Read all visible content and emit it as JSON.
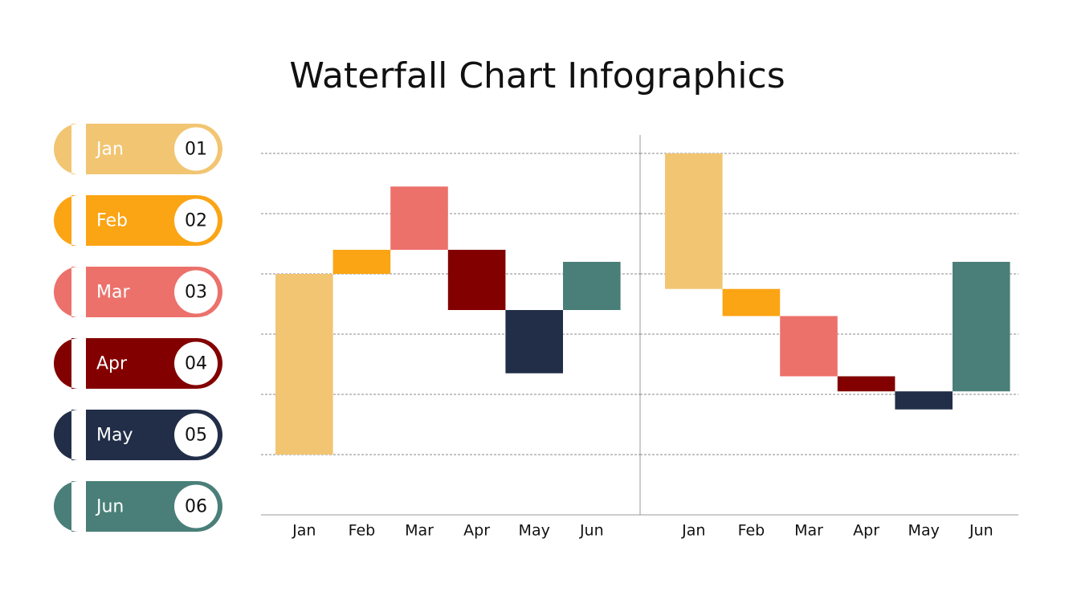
{
  "title": "Waterfall Chart Infographics",
  "legend": {
    "items": [
      {
        "label": "Jan",
        "number": "01"
      },
      {
        "label": "Feb",
        "number": "02"
      },
      {
        "label": "Mar",
        "number": "03"
      },
      {
        "label": "Apr",
        "number": "04"
      },
      {
        "label": "May",
        "number": "05"
      },
      {
        "label": "Jun",
        "number": "06"
      }
    ]
  },
  "chart_data": [
    {
      "type": "waterfall",
      "categories": [
        "Jan",
        "Feb",
        "Mar",
        "Apr",
        "May",
        "Jun"
      ],
      "low": [
        1,
        4,
        4.4,
        3.4,
        2.35,
        3.4
      ],
      "high": [
        4,
        4.4,
        5.45,
        4.4,
        3.4,
        4.2
      ],
      "colors": [
        "#F2C572",
        "#FBA414",
        "#EC716B",
        "#830000",
        "#222E48",
        "#4A7F79"
      ],
      "ylim": [
        0,
        6.3
      ],
      "yticks": [
        1,
        2,
        3,
        4,
        5,
        6
      ],
      "grid": true,
      "tick_labels": false
    },
    {
      "type": "waterfall",
      "categories": [
        "Jan",
        "Feb",
        "Mar",
        "Apr",
        "May",
        "Jun"
      ],
      "low": [
        3.75,
        3.3,
        2.3,
        2.05,
        1.75,
        2.05
      ],
      "high": [
        6,
        3.75,
        3.3,
        2.3,
        2.05,
        4.2
      ],
      "colors": [
        "#F2C572",
        "#FBA414",
        "#EC716B",
        "#830000",
        "#222E48",
        "#4A7F79"
      ],
      "ylim": [
        0,
        6.3
      ],
      "yticks": [
        1,
        2,
        3,
        4,
        5,
        6
      ],
      "grid": true,
      "tick_labels": false
    }
  ]
}
